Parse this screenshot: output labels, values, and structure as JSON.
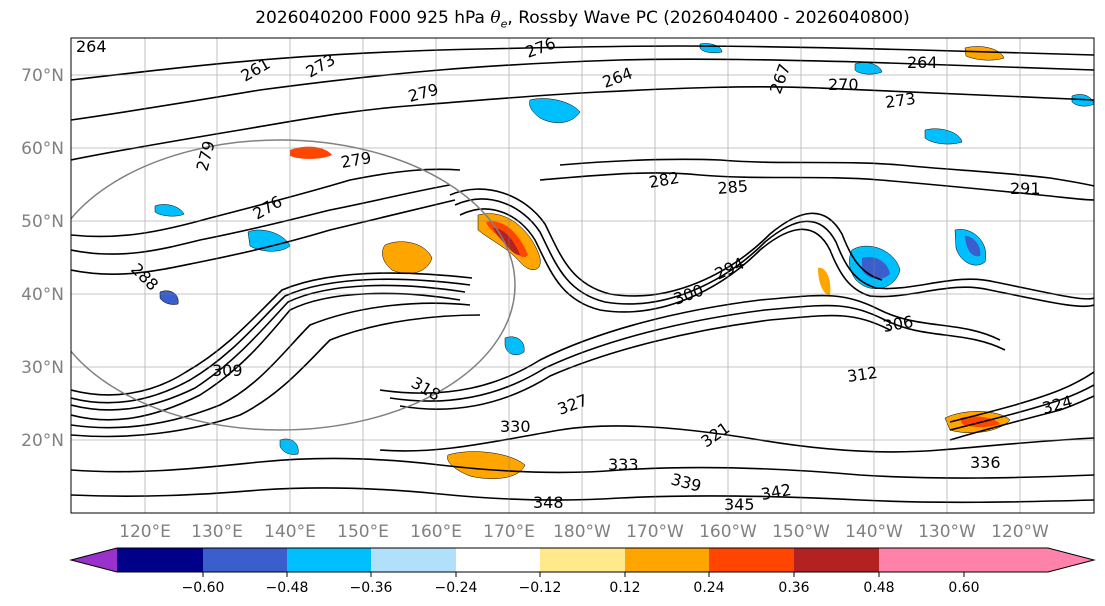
{
  "title": {
    "prefix": "2026040200 F000 925 hPa ",
    "theta": "θ",
    "theta_sub": "e",
    "suffix": ", Rossby Wave PC (2026040400 - 2026040800)"
  },
  "latitude_labels": [
    "70°N",
    "60°N",
    "50°N",
    "40°N",
    "30°N",
    "20°N"
  ],
  "longitude_labels": [
    "120°E",
    "130°E",
    "140°E",
    "150°E",
    "160°E",
    "170°E",
    "180°W",
    "170°W",
    "160°W",
    "150°W",
    "140°W",
    "130°W",
    "120°W"
  ],
  "contour_labels": [
    "264",
    "276",
    "279",
    "261",
    "273",
    "279",
    "264",
    "267",
    "270",
    "273",
    "264",
    "276",
    "279",
    "282",
    "285",
    "291",
    "288",
    "294",
    "300",
    "306",
    "309",
    "312",
    "318",
    "321",
    "324",
    "327",
    "330",
    "333",
    "336",
    "339",
    "342",
    "345",
    "348"
  ],
  "colorbar": {
    "tick_labels": [
      "−0.60",
      "−0.48",
      "−0.36",
      "−0.24",
      "−0.12",
      "0.12",
      "0.24",
      "0.36",
      "0.48",
      "0.60"
    ],
    "colors": [
      "#9932cc",
      "#00008b",
      "#3a5fcd",
      "#00bfff",
      "#b0e0fa",
      "#ffffff",
      "#ffe98a",
      "#ffa500",
      "#ff4500",
      "#b22222",
      "#ff82ab"
    ]
  }
}
